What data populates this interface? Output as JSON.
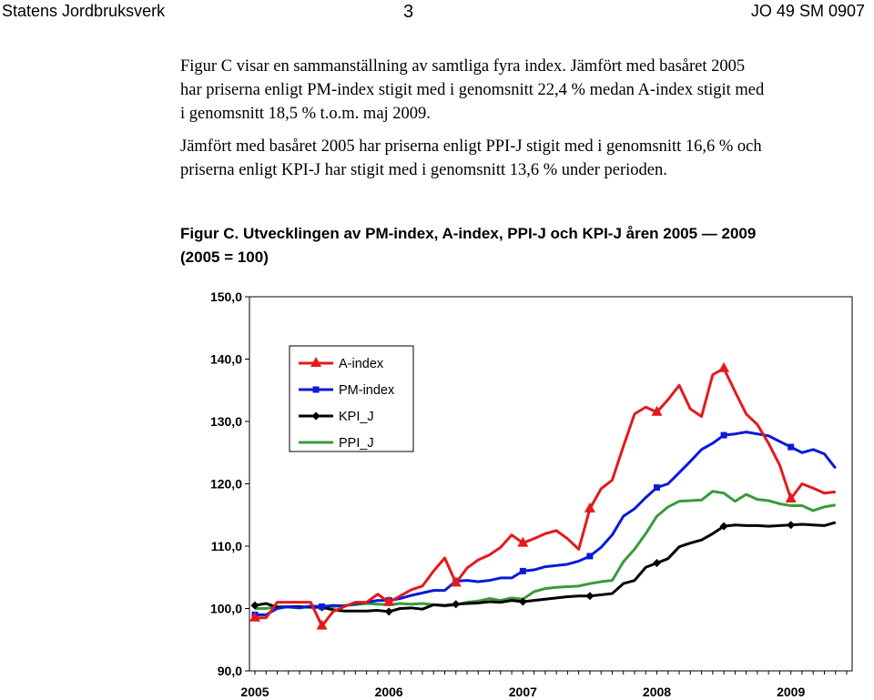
{
  "header": {
    "left": "Statens Jordbruksverk",
    "center": "3",
    "right": "JO 49 SM 0907"
  },
  "paragraph1": [
    "Figur C visar en sammanställning av samtliga fyra index. Jämfört med basåret 2005",
    "har priserna enligt PM-index stigit med i genomsnitt 22,4 % medan A-index stigit med",
    "i genomsnitt 18,5 % t.o.m. maj 2009."
  ],
  "paragraph2": [
    "Jämfört med basåret 2005 har priserna enligt PPI-J stigit med i genomsnitt 16,6 % och",
    "priserna enligt KPI-J har stigit med i genomsnitt 13,6 % under perioden."
  ],
  "figure_title": [
    "Figur C. Utvecklingen av PM-index, A-index, PPI-J och KPI-J åren 2005 — 2009",
    "(2005 = 100)"
  ],
  "chart_data": {
    "type": "line",
    "ylim": [
      90,
      150
    ],
    "yticks": [
      "150,0",
      "140,0",
      "130,0",
      "120,0",
      "110,0",
      "100,0",
      "90,0"
    ],
    "ytick_values": [
      150,
      140,
      130,
      120,
      110,
      100,
      90
    ],
    "xlim": [
      0,
      53
    ],
    "xticks": [
      "2005",
      "2006",
      "2007",
      "2008",
      "2009"
    ],
    "xtick_positions": [
      0,
      12,
      24,
      36,
      48
    ],
    "legend_position": "top-left",
    "series": [
      {
        "name": "A-index",
        "color": "#e31a1c",
        "marker": "triangle",
        "marker_every": 6,
        "values": [
          98.5,
          98.5,
          101,
          101,
          101,
          101,
          97.2,
          99.5,
          100.3,
          101,
          101,
          102.3,
          101,
          102,
          103,
          103.6,
          106,
          108.1,
          104.1,
          106.5,
          107.8,
          108.6,
          109.8,
          111.8,
          110.5,
          111.2,
          112,
          112.5,
          111.2,
          109.5,
          116,
          119.2,
          120.6,
          126,
          131.2,
          132.3,
          131.5,
          133.5,
          135.8,
          132,
          130.8,
          137.5,
          138.5,
          134.8,
          131.2,
          129.5,
          126.5,
          123,
          117.6,
          120,
          119.3,
          118.5,
          118.7
        ]
      },
      {
        "name": "PM-index",
        "color": "#0a1ad9",
        "marker": "square",
        "marker_every": 6,
        "values": [
          99,
          99,
          100,
          100.3,
          100.1,
          100.4,
          100.3,
          100.5,
          100.4,
          100.8,
          101,
          101.3,
          101.3,
          101.6,
          102.1,
          102.5,
          102.9,
          102.9,
          104.4,
          104.5,
          104.3,
          104.5,
          104.9,
          104.9,
          106,
          106.2,
          106.7,
          106.9,
          107.1,
          107.6,
          108.4,
          109.8,
          111.8,
          114.8,
          116,
          117.8,
          119.4,
          120,
          121.8,
          123.6,
          125.5,
          126.5,
          127.8,
          128,
          128.3,
          128,
          127.7,
          126.8,
          125.9,
          125,
          125.5,
          124.8,
          122.5
        ]
      },
      {
        "name": "KPI_J",
        "color": "#000000",
        "marker": "diamond",
        "marker_every": 6,
        "values": [
          100.5,
          100.8,
          100.2,
          100.3,
          100.3,
          100.2,
          100.2,
          99.8,
          99.6,
          99.6,
          99.6,
          99.7,
          99.5,
          100,
          100.1,
          99.9,
          100.6,
          100.5,
          100.7,
          100.8,
          100.9,
          101.1,
          101,
          101.3,
          101.1,
          101.3,
          101.5,
          101.7,
          101.9,
          102,
          102,
          102.2,
          102.4,
          104,
          104.5,
          106.6,
          107.3,
          108,
          109.9,
          110.5,
          111,
          112,
          113.2,
          113.4,
          113.3,
          113.3,
          113.2,
          113.3,
          113.4,
          113.5,
          113.4,
          113.3,
          113.8
        ]
      },
      {
        "name": "PPI_J",
        "color": "#3a9a3a",
        "marker": "none",
        "marker_every": 6,
        "values": [
          100,
          100,
          100.3,
          100.2,
          100.1,
          100.3,
          100.4,
          100.3,
          100.5,
          100.6,
          100.8,
          100.7,
          100.6,
          100.8,
          100.7,
          100.8,
          100.6,
          100.4,
          100.6,
          101,
          101.2,
          101.6,
          101.3,
          101.7,
          101.5,
          102.7,
          103.2,
          103.4,
          103.5,
          103.6,
          104,
          104.3,
          104.5,
          107.5,
          109.5,
          112,
          114.8,
          116.3,
          117.2,
          117.3,
          117.4,
          118.8,
          118.5,
          117.2,
          118.3,
          117.5,
          117.3,
          116.8,
          116.5,
          116.5,
          115.7,
          116.3,
          116.6
        ]
      }
    ]
  }
}
